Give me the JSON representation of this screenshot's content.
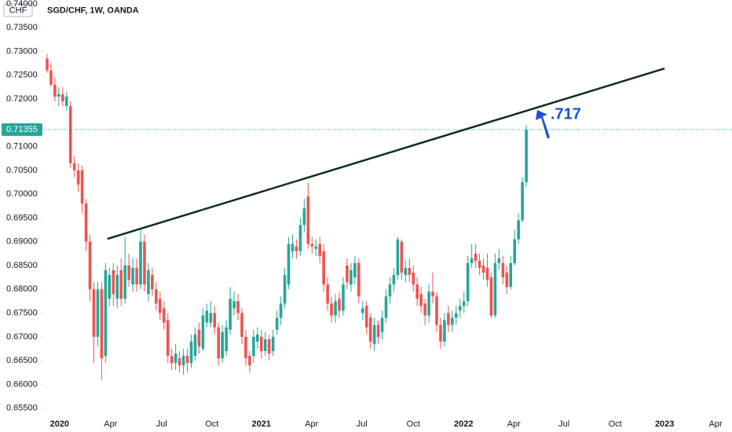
{
  "chart_data": {
    "type": "candlestick",
    "title": "SGD/CHF, 1W, OANDA",
    "currency_label": "CHF",
    "annotation": ".717",
    "last_price_label": "0.71355",
    "up_color": "#26a69a",
    "down_color": "#ef5350",
    "trendline_color": "#0f2e1f",
    "annotation_color": "#1e4fd8",
    "open": [
      0.7285,
      0.726,
      0.723,
      0.7205,
      0.721,
      0.7185,
      0.7185,
      0.7065,
      0.705,
      0.705,
      0.698,
      0.69,
      0.68,
      0.67,
      0.68,
      0.666,
      0.678,
      0.684,
      0.678,
      0.684,
      0.678,
      0.685,
      0.681,
      0.6845,
      0.681,
      0.69,
      0.679,
      0.683,
      0.68,
      0.678,
      0.676,
      0.6735,
      0.666,
      0.6645,
      0.6655,
      0.664,
      0.666,
      0.6645,
      0.666,
      0.6715,
      0.6675,
      0.673,
      0.673,
      0.675,
      0.672,
      0.6655,
      0.667,
      0.6715,
      0.676,
      0.6775,
      0.675,
      0.67,
      0.666,
      0.666,
      0.669,
      0.67,
      0.667,
      0.6695,
      0.667,
      0.6715,
      0.674,
      0.677,
      0.681,
      0.688,
      0.689,
      0.688,
      0.6935,
      0.6995,
      0.6895,
      0.6885,
      0.6895,
      0.688,
      0.681,
      0.677,
      0.6745,
      0.678,
      0.6755,
      0.685,
      0.681,
      0.6825,
      0.6855,
      0.675,
      0.6765,
      0.674,
      0.6685,
      0.6725,
      0.671,
      0.674,
      0.6785,
      0.681,
      0.683,
      0.69,
      0.683,
      0.6845,
      0.6835,
      0.681,
      0.679,
      0.677,
      0.6745,
      0.6795,
      0.6785,
      0.6725,
      0.669,
      0.675,
      0.6725,
      0.674,
      0.6755,
      0.6765,
      0.6775,
      0.6855,
      0.6875,
      0.686,
      0.685,
      0.6845,
      0.6825,
      0.6745,
      0.6855,
      0.6855,
      0.6835,
      0.6805,
      0.6855,
      0.6905,
      0.6945,
      0.7025
    ],
    "high": [
      0.7295,
      0.7275,
      0.7245,
      0.7225,
      0.7225,
      0.7215,
      0.7195,
      0.708,
      0.7065,
      0.706,
      0.699,
      0.6915,
      0.6815,
      0.6815,
      0.6815,
      0.6855,
      0.6845,
      0.6855,
      0.685,
      0.6865,
      0.691,
      0.6875,
      0.6865,
      0.6865,
      0.6925,
      0.6915,
      0.6855,
      0.6845,
      0.6815,
      0.6795,
      0.6775,
      0.675,
      0.6675,
      0.6685,
      0.667,
      0.6675,
      0.6675,
      0.6705,
      0.672,
      0.673,
      0.676,
      0.677,
      0.6775,
      0.6765,
      0.673,
      0.6725,
      0.6735,
      0.6805,
      0.6795,
      0.679,
      0.676,
      0.6715,
      0.667,
      0.6715,
      0.672,
      0.6715,
      0.671,
      0.6705,
      0.6715,
      0.6755,
      0.6785,
      0.6845,
      0.691,
      0.6915,
      0.6905,
      0.695,
      0.699,
      0.7025,
      0.691,
      0.6905,
      0.691,
      0.6895,
      0.6825,
      0.6785,
      0.679,
      0.6795,
      0.6825,
      0.6865,
      0.6855,
      0.687,
      0.6865,
      0.6775,
      0.6775,
      0.675,
      0.674,
      0.6735,
      0.6755,
      0.68,
      0.6825,
      0.6845,
      0.691,
      0.6905,
      0.686,
      0.6865,
      0.685,
      0.6825,
      0.6805,
      0.678,
      0.681,
      0.6835,
      0.6795,
      0.674,
      0.675,
      0.6765,
      0.6755,
      0.6765,
      0.678,
      0.6795,
      0.687,
      0.6895,
      0.6895,
      0.6875,
      0.6865,
      0.6875,
      0.6835,
      0.6875,
      0.6885,
      0.687,
      0.685,
      0.687,
      0.6925,
      0.696,
      0.7035,
      0.7145
    ],
    "low": [
      0.7255,
      0.7225,
      0.7195,
      0.7185,
      0.7185,
      0.7175,
      0.7055,
      0.7035,
      0.7005,
      0.696,
      0.688,
      0.6775,
      0.6645,
      0.668,
      0.661,
      0.6645,
      0.6765,
      0.6765,
      0.676,
      0.6765,
      0.677,
      0.6805,
      0.6795,
      0.6795,
      0.68,
      0.6795,
      0.6775,
      0.6785,
      0.6755,
      0.6735,
      0.6715,
      0.6645,
      0.663,
      0.663,
      0.6625,
      0.662,
      0.6625,
      0.6635,
      0.665,
      0.6665,
      0.667,
      0.672,
      0.672,
      0.6705,
      0.664,
      0.6645,
      0.666,
      0.6705,
      0.6745,
      0.6735,
      0.6685,
      0.664,
      0.6625,
      0.6645,
      0.6675,
      0.6655,
      0.666,
      0.665,
      0.666,
      0.6705,
      0.6725,
      0.676,
      0.68,
      0.6865,
      0.6865,
      0.687,
      0.692,
      0.6885,
      0.6875,
      0.687,
      0.6855,
      0.6795,
      0.6755,
      0.673,
      0.673,
      0.674,
      0.6745,
      0.68,
      0.6795,
      0.681,
      0.677,
      0.6735,
      0.6705,
      0.6675,
      0.667,
      0.6685,
      0.6695,
      0.673,
      0.677,
      0.6795,
      0.682,
      0.682,
      0.6815,
      0.6815,
      0.6795,
      0.6765,
      0.675,
      0.6725,
      0.673,
      0.677,
      0.671,
      0.6675,
      0.668,
      0.671,
      0.671,
      0.6725,
      0.674,
      0.675,
      0.6765,
      0.6845,
      0.6845,
      0.683,
      0.682,
      0.6805,
      0.674,
      0.674,
      0.684,
      0.681,
      0.679,
      0.68,
      0.685,
      0.6895,
      0.694,
      0.7015
    ],
    "close": [
      0.726,
      0.723,
      0.7205,
      0.721,
      0.7195,
      0.7205,
      0.7065,
      0.705,
      0.702,
      0.698,
      0.69,
      0.68,
      0.67,
      0.68,
      0.6655,
      0.684,
      0.683,
      0.679,
      0.683,
      0.678,
      0.685,
      0.682,
      0.6845,
      0.681,
      0.69,
      0.681,
      0.684,
      0.68,
      0.677,
      0.675,
      0.673,
      0.666,
      0.6645,
      0.6665,
      0.664,
      0.666,
      0.6645,
      0.669,
      0.6705,
      0.668,
      0.6745,
      0.6755,
      0.675,
      0.672,
      0.6655,
      0.671,
      0.672,
      0.678,
      0.6775,
      0.675,
      0.67,
      0.6655,
      0.664,
      0.67,
      0.6705,
      0.667,
      0.6695,
      0.6665,
      0.67,
      0.674,
      0.677,
      0.683,
      0.6895,
      0.6895,
      0.688,
      0.6935,
      0.697,
      0.6895,
      0.689,
      0.689,
      0.687,
      0.681,
      0.677,
      0.6745,
      0.6775,
      0.6755,
      0.681,
      0.6815,
      0.684,
      0.6855,
      0.6785,
      0.676,
      0.672,
      0.669,
      0.6725,
      0.67,
      0.674,
      0.6785,
      0.681,
      0.683,
      0.6905,
      0.6835,
      0.6845,
      0.683,
      0.681,
      0.678,
      0.6765,
      0.6745,
      0.6795,
      0.6785,
      0.6725,
      0.669,
      0.6735,
      0.6725,
      0.674,
      0.675,
      0.6765,
      0.6775,
      0.6855,
      0.6865,
      0.686,
      0.6845,
      0.6835,
      0.682,
      0.6745,
      0.6855,
      0.6865,
      0.6825,
      0.6805,
      0.6855,
      0.6905,
      0.6945,
      0.7025,
      0.71355
    ],
    "xlim": [
      -1.0,
      175.8
    ],
    "xticks": [
      {
        "value": 3.2,
        "label": "2020"
      },
      {
        "value": 16.3,
        "label": "Apr"
      },
      {
        "value": 29.4,
        "label": "Jul"
      },
      {
        "value": 42.3,
        "label": "Oct"
      },
      {
        "value": 55.0,
        "label": "2021"
      },
      {
        "value": 67.9,
        "label": "Apr"
      },
      {
        "value": 80.8,
        "label": "Jul"
      },
      {
        "value": 94.0,
        "label": "Oct"
      },
      {
        "value": 106.9,
        "label": "2022"
      },
      {
        "value": 119.8,
        "label": "Apr"
      },
      {
        "value": 132.7,
        "label": "Jul"
      },
      {
        "value": 145.8,
        "label": "Oct"
      },
      {
        "value": 158.5,
        "label": "2023"
      },
      {
        "value": 171.6,
        "label": "Apr"
      }
    ],
    "ylim": [
      0.6533,
      0.7408
    ],
    "yticks": [
      {
        "value": 0.74,
        "label": "0.74000"
      },
      {
        "value": 0.735,
        "label": "0.73500"
      },
      {
        "value": 0.73,
        "label": "0.73000"
      },
      {
        "value": 0.725,
        "label": "0.72500"
      },
      {
        "value": 0.72,
        "label": "0.72000"
      },
      {
        "value": 0.71,
        "label": "0.71000"
      },
      {
        "value": 0.705,
        "label": "0.70500"
      },
      {
        "value": 0.7,
        "label": "0.70000"
      },
      {
        "value": 0.695,
        "label": "0.69500"
      },
      {
        "value": 0.69,
        "label": "0.69000"
      },
      {
        "value": 0.685,
        "label": "0.68500"
      },
      {
        "value": 0.68,
        "label": "0.68000"
      },
      {
        "value": 0.675,
        "label": "0.67500"
      },
      {
        "value": 0.67,
        "label": "0.67000"
      },
      {
        "value": 0.665,
        "label": "0.66500"
      },
      {
        "value": 0.66,
        "label": "0.66000"
      },
      {
        "value": 0.655,
        "label": "0.65500"
      }
    ],
    "trendline": {
      "x": [
        15.5,
        158.5
      ],
      "y": [
        0.6906,
        0.7264
      ]
    }
  }
}
